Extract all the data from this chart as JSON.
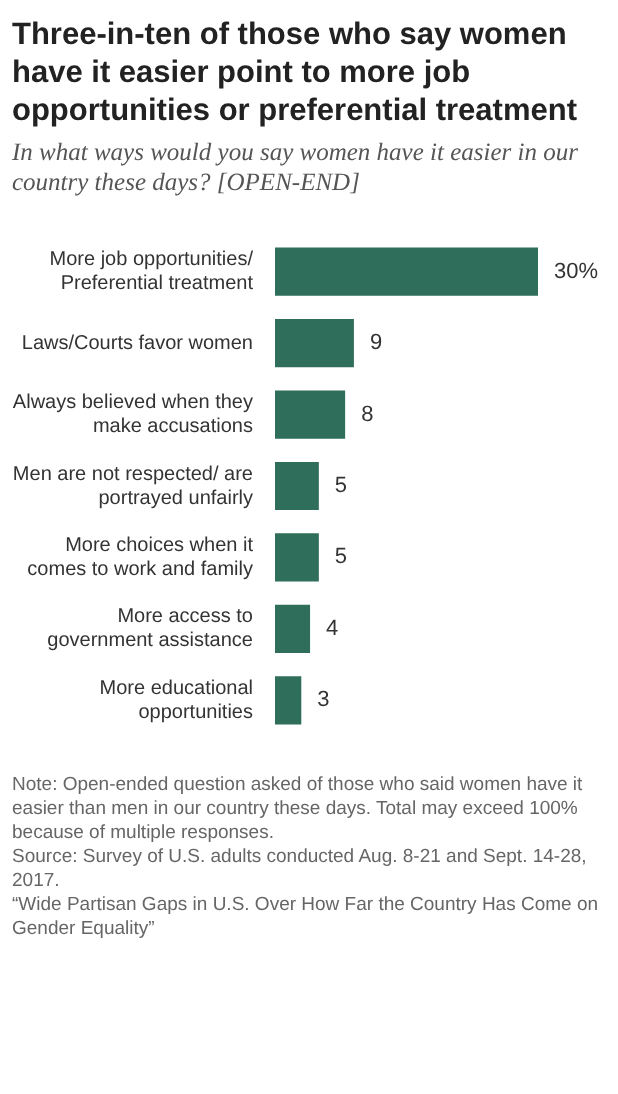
{
  "chart_data": {
    "type": "bar",
    "orientation": "horizontal",
    "title": "Three-in-ten of those who say women have it easier point to more job opportunities or preferential treatment",
    "subtitle": "In what ways would you say women have it easier in our country these days? [OPEN-END]",
    "categories": [
      "More job opportunities/ Preferential treatment",
      "Laws/Courts favor women",
      "Always believed when they make accusations",
      "Men are not respected/ are portrayed unfairly",
      "More choices when it comes to work and family",
      "More access to government assistance",
      "More educational opportunities"
    ],
    "values": [
      30,
      9,
      8,
      5,
      5,
      4,
      3
    ],
    "value_labels": [
      "30%",
      "9",
      "8",
      "5",
      "5",
      "4",
      "3"
    ],
    "color": "#2e6e5a",
    "annotations": [
      "Note: Open-ended question asked of those who said women have it easier than men in our country these days. Total may exceed 100% because of multiple responses.",
      "Source: Survey of U.S. adults conducted Aug. 8-21 and Sept. 14-28, 2017.",
      "“Wide Partisan Gaps in U.S. Over How Far the Country Has Come on Gender Equality”"
    ]
  }
}
